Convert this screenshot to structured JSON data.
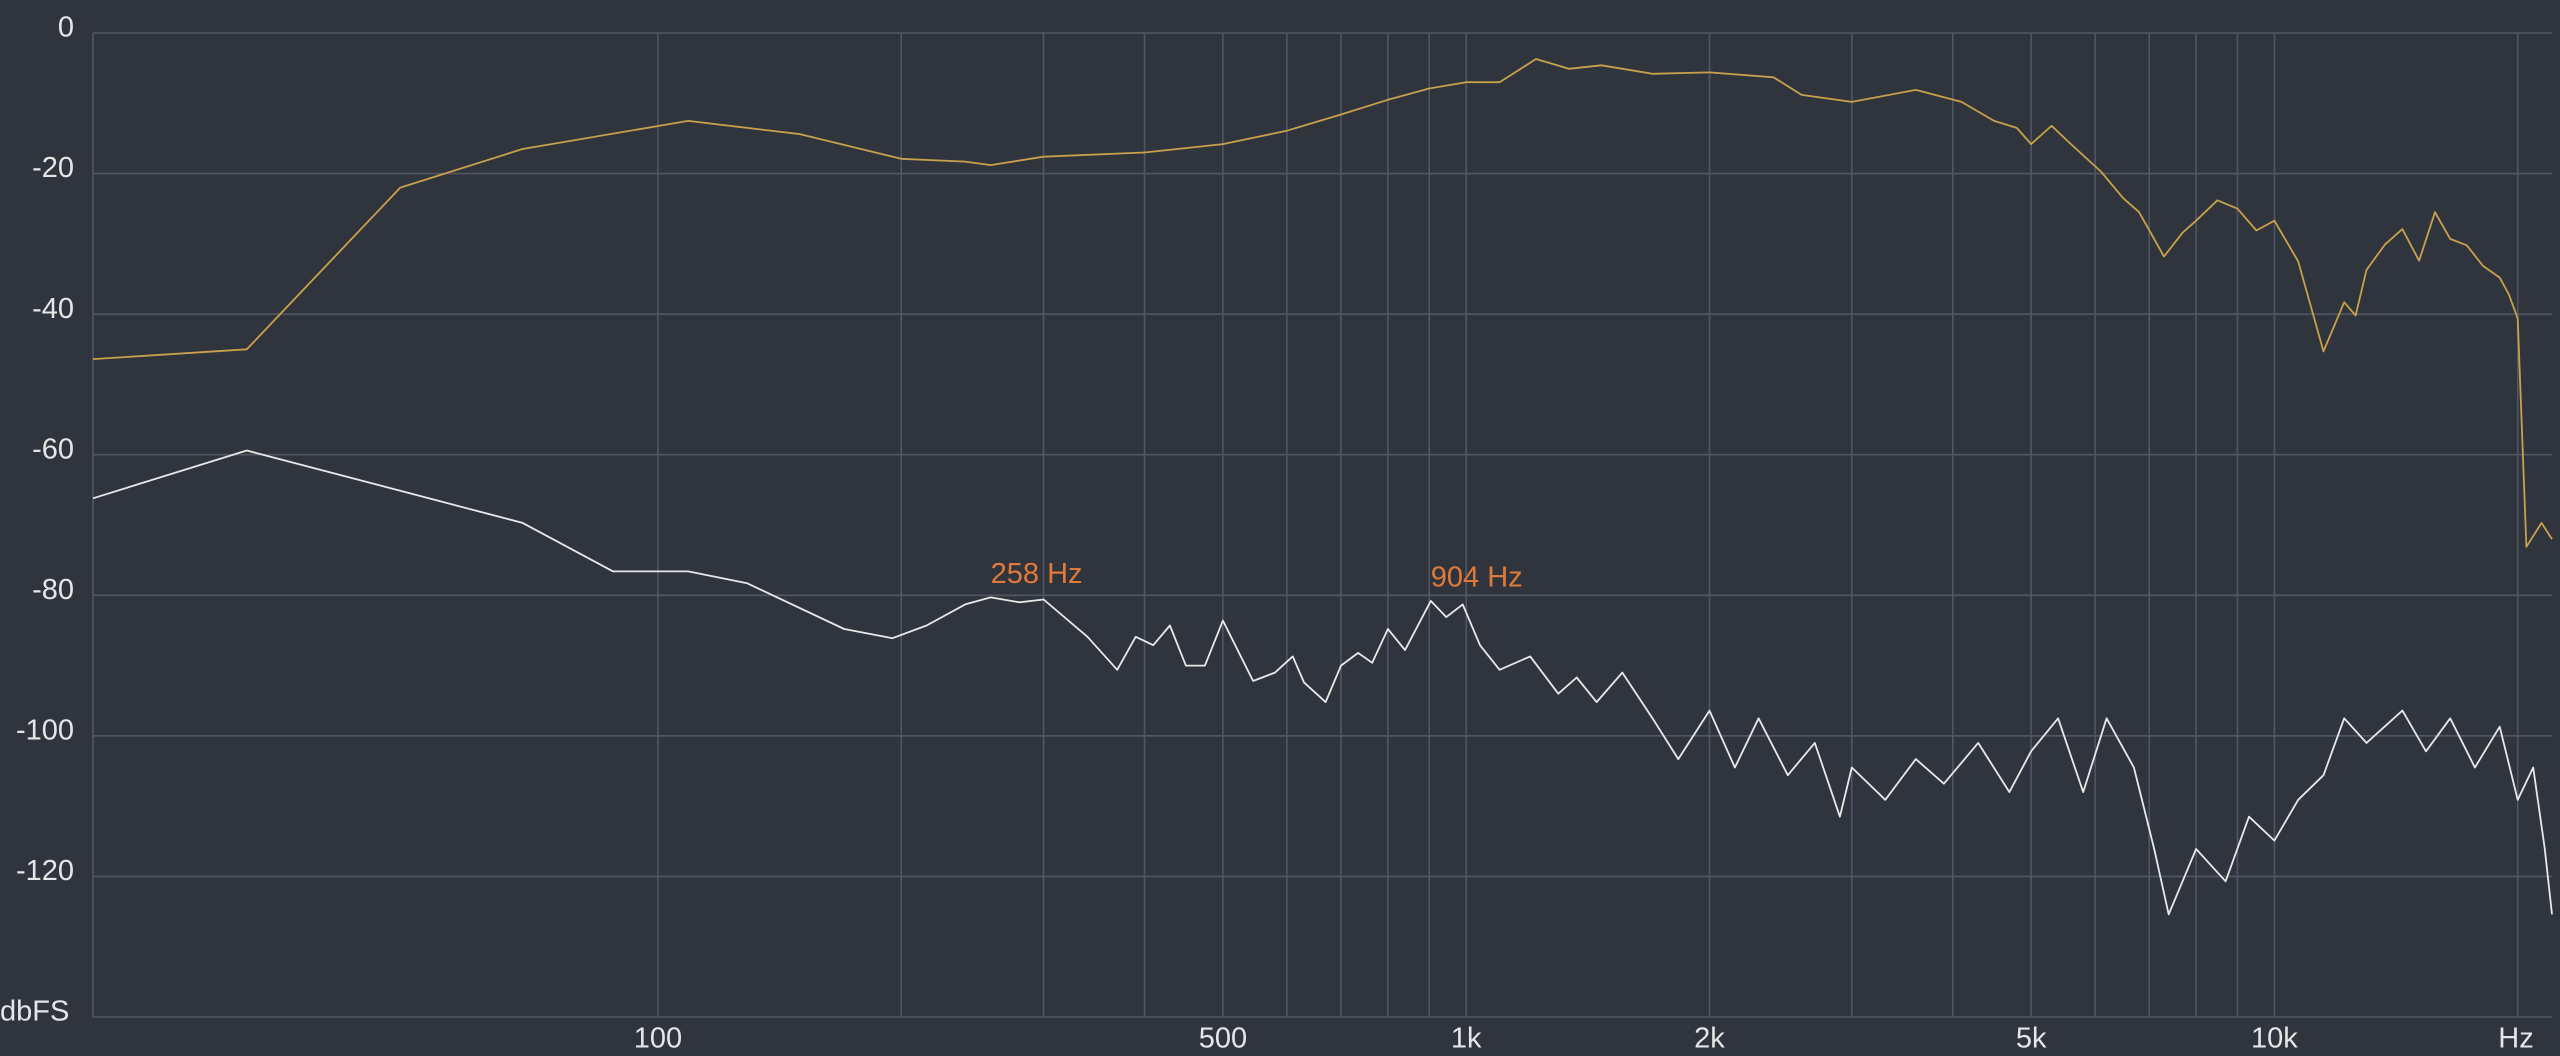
{
  "chart_data": {
    "type": "line",
    "xlabel": "Hz",
    "ylabel": "dbFS",
    "xscale": "log",
    "grid": true,
    "xlim": [
      20,
      22050
    ],
    "ylim": [
      -140,
      0
    ],
    "yticks": [
      0,
      -20,
      -40,
      -60,
      -80,
      -100,
      -120
    ],
    "xticks": [
      100,
      500,
      {
        "value": 1000,
        "label": "1k"
      },
      {
        "value": 2000,
        "label": "2k"
      },
      {
        "value": 5000,
        "label": "5k"
      },
      {
        "value": 10000,
        "label": "10k"
      }
    ],
    "xgrid": [
      100,
      200,
      300,
      400,
      500,
      600,
      700,
      800,
      900,
      1000,
      2000,
      3000,
      4000,
      5000,
      6000,
      7000,
      8000,
      9000,
      10000,
      20000
    ],
    "annotations": [
      {
        "text": "258 Hz",
        "x": 258,
        "y": -80.3
      },
      {
        "text": "904 Hz",
        "x": 904,
        "y": -80.8
      }
    ],
    "series": [
      {
        "color": "#c9a04c",
        "x": [
          20,
          31,
          48,
          68,
          109,
          150,
          200,
          240,
          258,
          300,
          400,
          500,
          600,
          700,
          800,
          900,
          1000,
          1100,
          1220,
          1340,
          1470,
          1700,
          2000,
          2400,
          2600,
          3000,
          3600,
          4100,
          4500,
          4800,
          5000,
          5300,
          5600,
          6100,
          6500,
          6800,
          7300,
          7700,
          8000,
          8500,
          9000,
          9500,
          10000,
          10700,
          11500,
          12200,
          12600,
          13000,
          13700,
          14400,
          15100,
          15800,
          16500,
          17300,
          18100,
          19000,
          19500,
          20000,
          20500,
          21400,
          22050
        ],
        "values": [
          -46.4,
          -45,
          -22,
          -16.5,
          -12.5,
          -14.4,
          -17.9,
          -18.3,
          -18.8,
          -17.6,
          -17,
          -15.8,
          -13.9,
          -11.6,
          -9.5,
          -7.9,
          -7,
          -7,
          -3.7,
          -5.1,
          -4.6,
          -5.8,
          -5.6,
          -6.3,
          -8.8,
          -9.8,
          -8.1,
          -9.8,
          -12.5,
          -13.5,
          -15.8,
          -13.2,
          -15.8,
          -19.7,
          -23.5,
          -25.5,
          -31.8,
          -28.4,
          -26.7,
          -23.8,
          -25,
          -28.1,
          -26.7,
          -32.5,
          -45.3,
          -38.3,
          -40.2,
          -33.7,
          -30.1,
          -27.9,
          -32.4,
          -25.5,
          -29.3,
          -30.2,
          -33.1,
          -34.8,
          -37.2,
          -40.6,
          -73.1,
          -69.7,
          -72
        ]
      },
      {
        "color": "#e8e8e8",
        "x": [
          20,
          31,
          68,
          88,
          109,
          129,
          170,
          195,
          215,
          240,
          258,
          280,
          300,
          340,
          370,
          390,
          410,
          430,
          450,
          475,
          500,
          545,
          580,
          610,
          630,
          670,
          700,
          735,
          765,
          800,
          840,
          904,
          945,
          990,
          1040,
          1100,
          1200,
          1300,
          1370,
          1450,
          1560,
          1700,
          1830,
          2000,
          2150,
          2300,
          2500,
          2700,
          2900,
          3000,
          3300,
          3600,
          3900,
          4300,
          4700,
          5000,
          5400,
          5800,
          6200,
          6700,
          7100,
          7400,
          8000,
          8700,
          9300,
          10000,
          10700,
          11500,
          12200,
          13000,
          14400,
          15400,
          16500,
          17700,
          19000,
          20000,
          20900,
          21600,
          22050
        ],
        "values": [
          -66.2,
          -59.4,
          -69.7,
          -76.6,
          -76.6,
          -78.3,
          -84.8,
          -86.1,
          -84.3,
          -81.3,
          -80.3,
          -81,
          -80.6,
          -85.9,
          -90.6,
          -85.9,
          -87.1,
          -84.3,
          -90,
          -90,
          -83.6,
          -92.2,
          -91,
          -88.7,
          -92.4,
          -95.2,
          -90,
          -88.2,
          -89.6,
          -84.8,
          -87.8,
          -80.8,
          -83.1,
          -81.3,
          -87.1,
          -90.6,
          -88.7,
          -94,
          -91.7,
          -95.2,
          -91,
          -97.5,
          -103.3,
          -96.4,
          -104.5,
          -97.5,
          -105.6,
          -101,
          -111.5,
          -104.5,
          -109.1,
          -103.3,
          -106.8,
          -101,
          -108,
          -102.2,
          -97.5,
          -108,
          -97.5,
          -104.5,
          -116.1,
          -125.4,
          -116.1,
          -120.7,
          -111.5,
          -114.9,
          -109.1,
          -105.6,
          -97.5,
          -101,
          -96.4,
          -102.2,
          -97.5,
          -104.5,
          -98.7,
          -109.1,
          -104.5,
          -116.1,
          -125.4
        ]
      }
    ]
  }
}
